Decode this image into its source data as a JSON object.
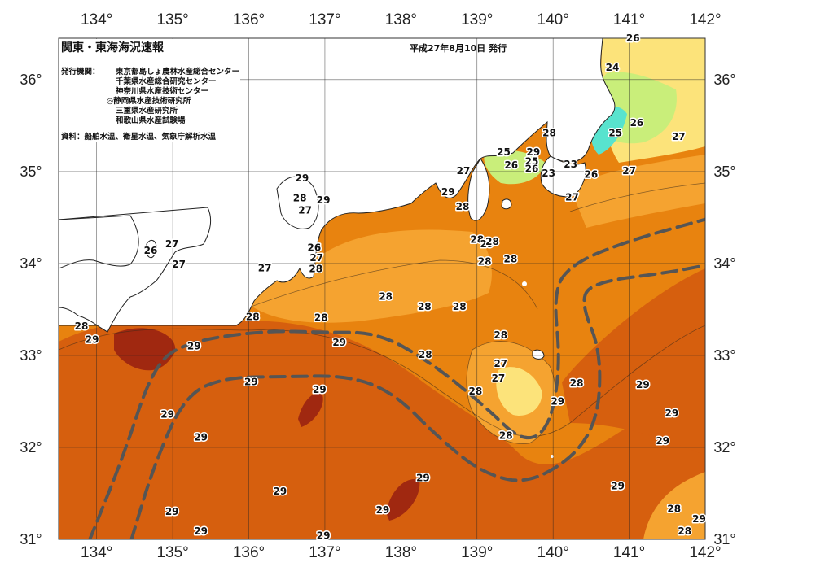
{
  "header": {
    "title": "関東・東海海況速報",
    "issue_date": "平成27年8月10日 発行",
    "publisher_label": "発行機関：",
    "publishers": [
      "東京都島しょ農林水産総合センター",
      "千葉県水産総合研究センター",
      "神奈川県水産技術センター",
      "◎静岡県水産技術研究所",
      "三重県水産研究所",
      "和歌山県水産試験場"
    ],
    "source": "資料：船舶水温、衛星水温、気象庁解析水温"
  },
  "axes": {
    "longitudes": [
      "134°",
      "135°",
      "136°",
      "137°",
      "138°",
      "139°",
      "140°",
      "141°",
      "142°"
    ],
    "latitudes": [
      "36°",
      "35°",
      "34°",
      "33°",
      "32°",
      "31°"
    ]
  },
  "colors": {
    "sea_29": "#D65F0E",
    "sea_28": "#E8830F",
    "sea_27": "#F5A330",
    "sea_26": "#FCE37A",
    "sea_25": "#C9EE7A",
    "sea_24": "#58E3CE",
    "sea_30": "#A02810",
    "land": "#FFFFFF",
    "kuroshio_axis": "#555555"
  },
  "isotherm_labels": [
    {
      "text": "26",
      "lon": 141.05,
      "lat": 36.45
    },
    {
      "text": "24",
      "lon": 140.78,
      "lat": 36.13
    },
    {
      "text": "26",
      "lon": 141.1,
      "lat": 35.53
    },
    {
      "text": "25",
      "lon": 140.82,
      "lat": 35.42
    },
    {
      "text": "27",
      "lon": 141.65,
      "lat": 35.38
    },
    {
      "text": "28",
      "lon": 139.95,
      "lat": 35.42
    },
    {
      "text": "25",
      "lon": 139.35,
      "lat": 35.21
    },
    {
      "text": "29",
      "lon": 139.74,
      "lat": 35.21
    },
    {
      "text": "25",
      "lon": 139.72,
      "lat": 35.11
    },
    {
      "text": "26",
      "lon": 139.45,
      "lat": 35.07
    },
    {
      "text": "26",
      "lon": 139.72,
      "lat": 35.03
    },
    {
      "text": "23",
      "lon": 139.94,
      "lat": 34.98
    },
    {
      "text": "23",
      "lon": 140.23,
      "lat": 35.08
    },
    {
      "text": "26",
      "lon": 140.5,
      "lat": 34.97
    },
    {
      "text": "27",
      "lon": 141.0,
      "lat": 35.01
    },
    {
      "text": "27",
      "lon": 140.25,
      "lat": 34.72
    },
    {
      "text": "27",
      "lon": 138.82,
      "lat": 35.01
    },
    {
      "text": "29",
      "lon": 138.62,
      "lat": 34.78
    },
    {
      "text": "28",
      "lon": 138.81,
      "lat": 34.62
    },
    {
      "text": "29",
      "lon": 136.7,
      "lat": 34.93
    },
    {
      "text": "28",
      "lon": 136.67,
      "lat": 34.71
    },
    {
      "text": "29",
      "lon": 136.98,
      "lat": 34.69
    },
    {
      "text": "27",
      "lon": 136.74,
      "lat": 34.58
    },
    {
      "text": "27",
      "lon": 134.99,
      "lat": 34.21
    },
    {
      "text": "26",
      "lon": 134.71,
      "lat": 34.14
    },
    {
      "text": "27",
      "lon": 135.08,
      "lat": 33.99
    },
    {
      "text": "26",
      "lon": 136.86,
      "lat": 34.17
    },
    {
      "text": "27",
      "lon": 136.89,
      "lat": 34.06
    },
    {
      "text": "27",
      "lon": 136.21,
      "lat": 33.95
    },
    {
      "text": "28",
      "lon": 136.88,
      "lat": 33.94
    },
    {
      "text": "28",
      "lon": 139.0,
      "lat": 34.26
    },
    {
      "text": "29",
      "lon": 139.13,
      "lat": 34.21
    },
    {
      "text": "28",
      "lon": 139.2,
      "lat": 34.24
    },
    {
      "text": "28",
      "lon": 139.1,
      "lat": 34.02
    },
    {
      "text": "28",
      "lon": 139.44,
      "lat": 34.05
    },
    {
      "text": "28",
      "lon": 137.8,
      "lat": 33.64
    },
    {
      "text": "28",
      "lon": 138.31,
      "lat": 33.53
    },
    {
      "text": "28",
      "lon": 138.77,
      "lat": 33.53
    },
    {
      "text": "28",
      "lon": 136.05,
      "lat": 33.42
    },
    {
      "text": "28",
      "lon": 136.95,
      "lat": 33.41
    },
    {
      "text": "28",
      "lon": 133.8,
      "lat": 33.32
    },
    {
      "text": "29",
      "lon": 133.94,
      "lat": 33.17
    },
    {
      "text": "29",
      "lon": 135.28,
      "lat": 33.1
    },
    {
      "text": "29",
      "lon": 137.19,
      "lat": 33.14
    },
    {
      "text": "28",
      "lon": 138.32,
      "lat": 33.01
    },
    {
      "text": "28",
      "lon": 139.31,
      "lat": 33.22
    },
    {
      "text": "27",
      "lon": 139.31,
      "lat": 32.91
    },
    {
      "text": "27",
      "lon": 139.28,
      "lat": 32.75
    },
    {
      "text": "28",
      "lon": 138.98,
      "lat": 32.61
    },
    {
      "text": "29",
      "lon": 140.06,
      "lat": 32.5
    },
    {
      "text": "28",
      "lon": 140.31,
      "lat": 32.7
    },
    {
      "text": "29",
      "lon": 141.18,
      "lat": 32.68
    },
    {
      "text": "29",
      "lon": 136.03,
      "lat": 32.71
    },
    {
      "text": "29",
      "lon": 136.93,
      "lat": 32.63
    },
    {
      "text": "29",
      "lon": 134.93,
      "lat": 32.36
    },
    {
      "text": "29",
      "lon": 135.37,
      "lat": 32.11
    },
    {
      "text": "28",
      "lon": 139.38,
      "lat": 32.13
    },
    {
      "text": "29",
      "lon": 141.56,
      "lat": 32.37
    },
    {
      "text": "29",
      "lon": 141.44,
      "lat": 32.07
    },
    {
      "text": "29",
      "lon": 138.29,
      "lat": 31.67
    },
    {
      "text": "29",
      "lon": 136.41,
      "lat": 31.52
    },
    {
      "text": "29",
      "lon": 140.85,
      "lat": 31.58
    },
    {
      "text": "29",
      "lon": 137.76,
      "lat": 31.32
    },
    {
      "text": "29",
      "lon": 134.99,
      "lat": 31.3
    },
    {
      "text": "28",
      "lon": 141.59,
      "lat": 31.33
    },
    {
      "text": "29",
      "lon": 141.92,
      "lat": 31.22
    },
    {
      "text": "29",
      "lon": 135.37,
      "lat": 31.09
    },
    {
      "text": "28",
      "lon": 141.73,
      "lat": 31.09
    },
    {
      "text": "29",
      "lon": 136.98,
      "lat": 31.04
    }
  ],
  "kuroshio": {
    "label": "",
    "path_a": [
      [
        133.9,
        30.98
      ],
      [
        134.35,
        31.9
      ],
      [
        134.75,
        32.9
      ],
      [
        135.2,
        33.15
      ],
      [
        136.2,
        33.27
      ],
      [
        137.0,
        33.25
      ],
      [
        137.7,
        33.25
      ],
      [
        138.4,
        32.92
      ],
      [
        139.1,
        32.45
      ],
      [
        139.6,
        32.05
      ],
      [
        139.95,
        32.2
      ],
      [
        140.1,
        32.9
      ],
      [
        140.0,
        33.7
      ],
      [
        140.25,
        34.0
      ],
      [
        141.0,
        34.25
      ],
      [
        142.0,
        34.48
      ]
    ],
    "path_b": [
      [
        134.45,
        30.98
      ],
      [
        134.75,
        31.8
      ],
      [
        135.15,
        32.55
      ],
      [
        135.65,
        32.76
      ],
      [
        136.5,
        32.77
      ],
      [
        137.3,
        32.78
      ],
      [
        137.9,
        32.6
      ],
      [
        138.5,
        32.1
      ],
      [
        139.1,
        31.7
      ],
      [
        139.75,
        31.6
      ],
      [
        140.55,
        32.1
      ],
      [
        140.65,
        33.0
      ],
      [
        140.35,
        33.6
      ],
      [
        140.55,
        33.8
      ],
      [
        141.5,
        33.9
      ],
      [
        142.0,
        33.98
      ]
    ]
  },
  "map_extent": {
    "lon_min": 133.5,
    "lon_max": 142.0,
    "lat_min": 31.0,
    "lat_max": 36.45
  }
}
